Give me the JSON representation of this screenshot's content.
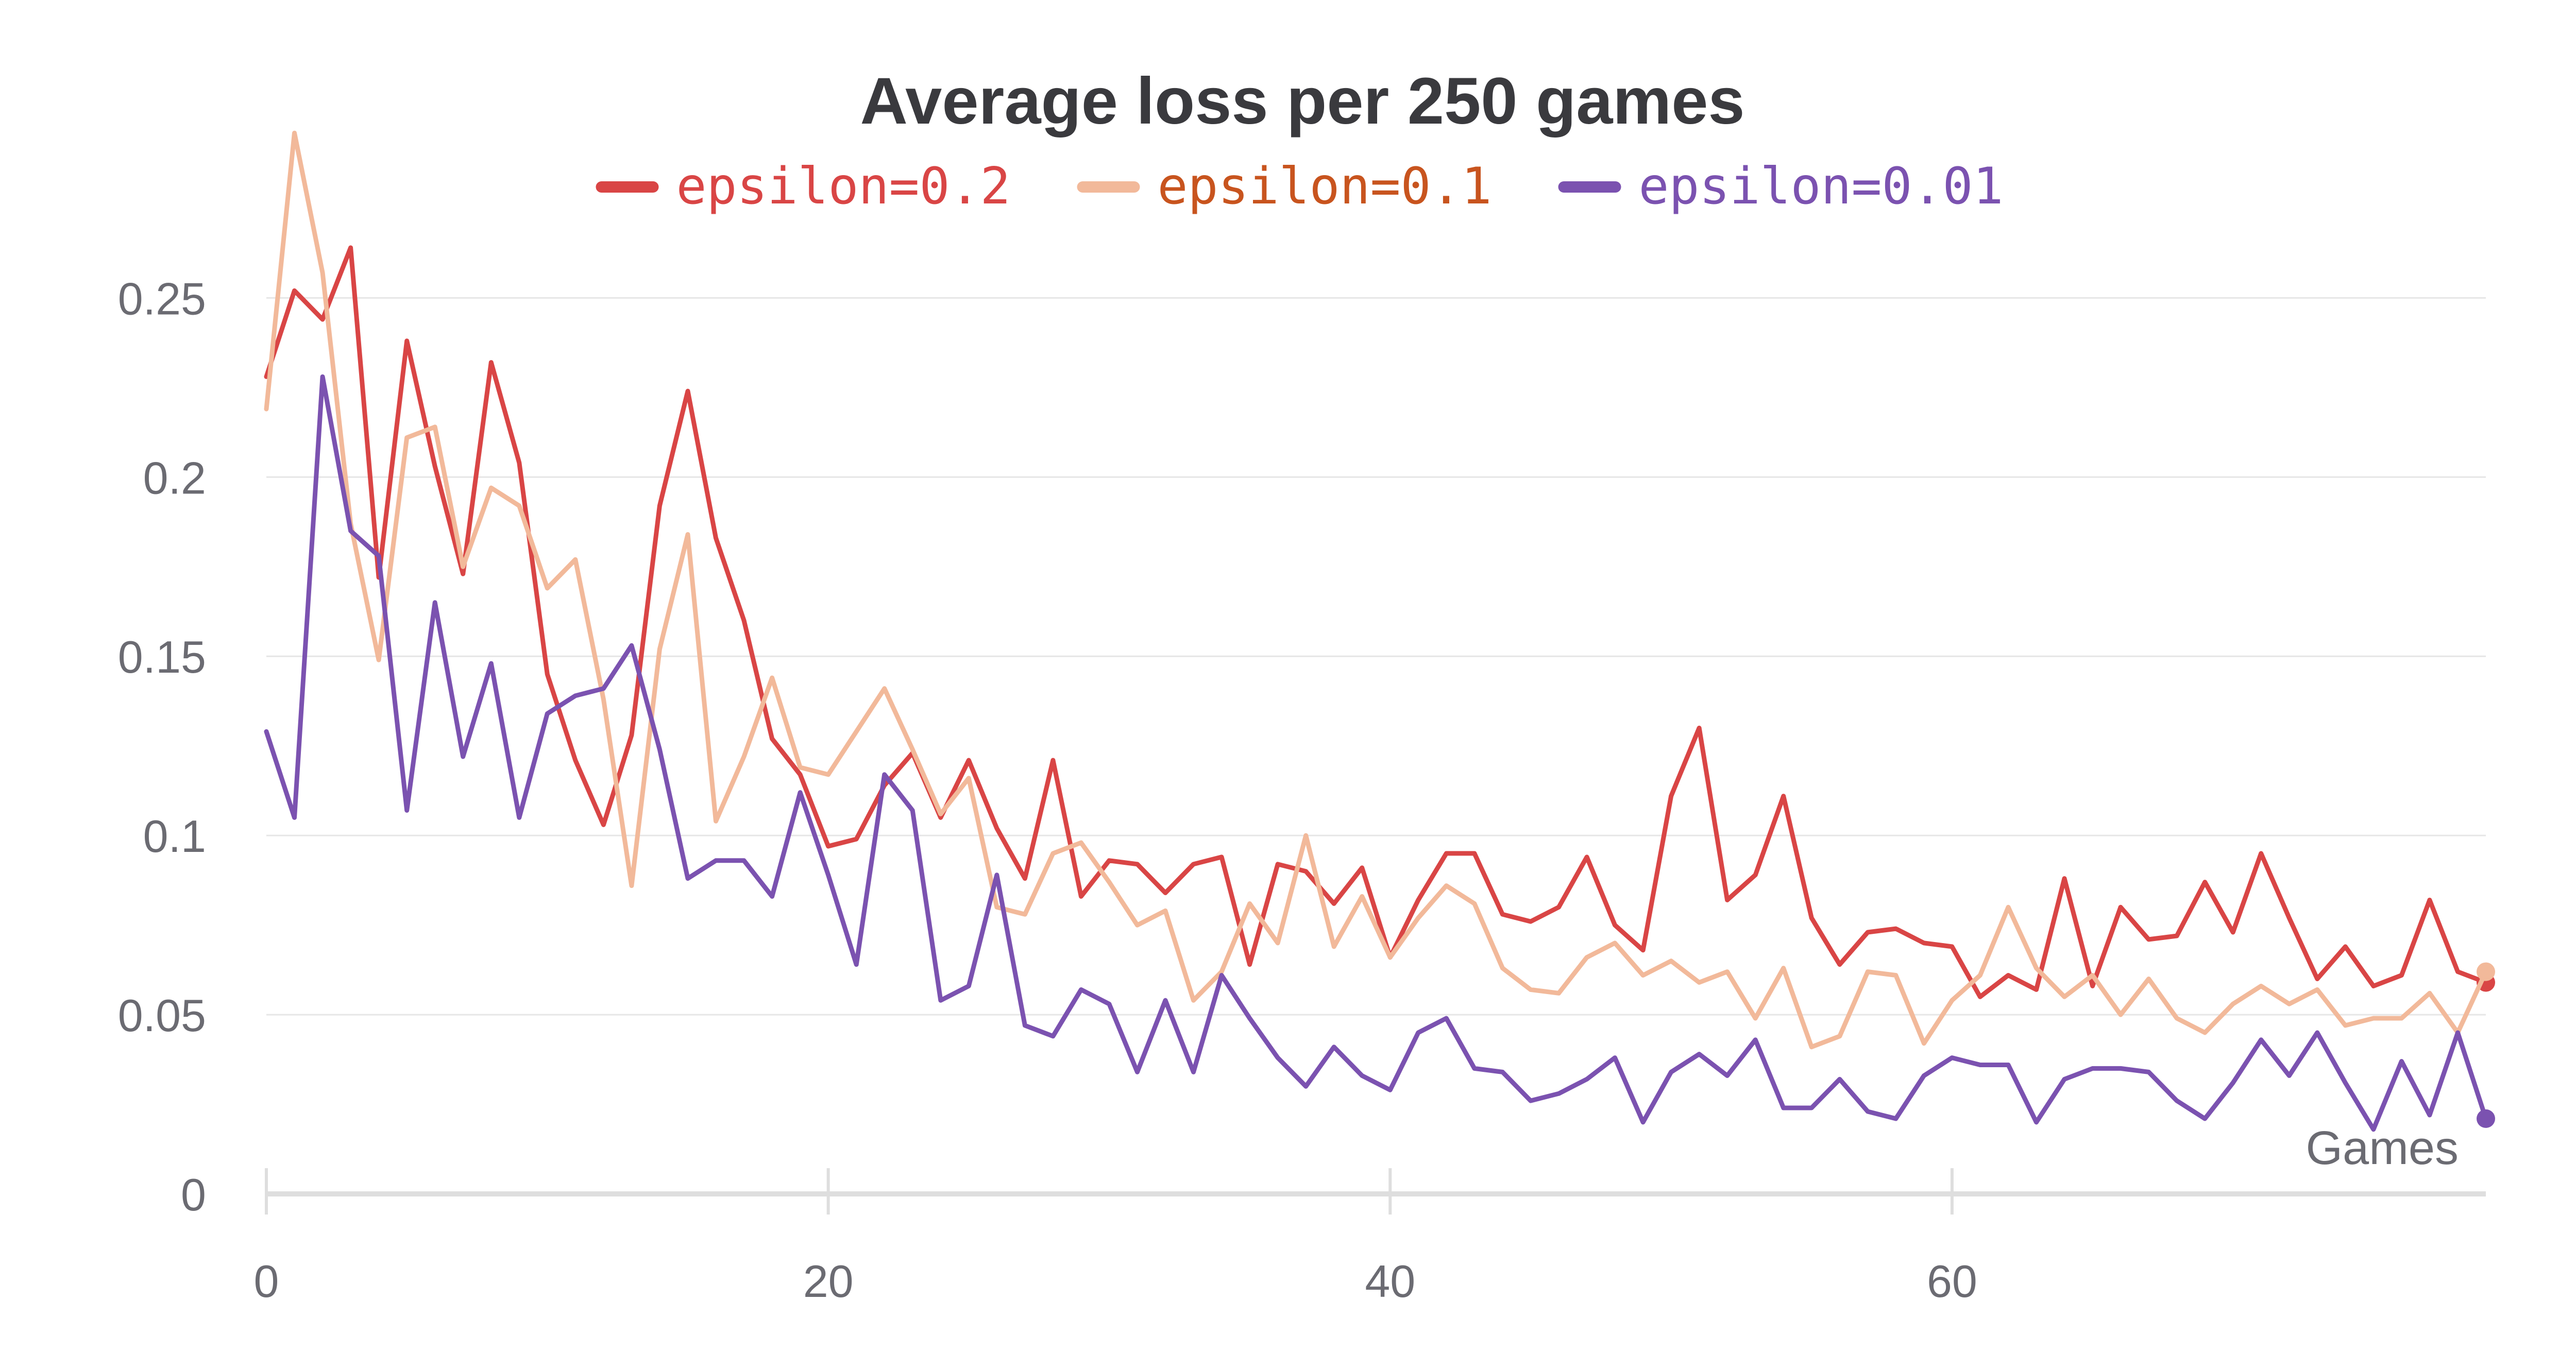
{
  "chart_data": {
    "type": "line",
    "title": "Average loss per 250 games",
    "xlabel": "Games",
    "ylabel": "",
    "xlim": [
      0,
      79
    ],
    "ylim": [
      0,
      0.29
    ],
    "x_ticks": [
      0,
      20,
      40,
      60
    ],
    "x_tick_labels": [
      "0",
      "20",
      "40",
      "60"
    ],
    "y_ticks": [
      0,
      0.05,
      0.1,
      0.15,
      0.2,
      0.25
    ],
    "y_tick_labels": [
      "0",
      "0.05",
      "0.1",
      "0.15",
      "0.2",
      "0.25"
    ],
    "grid": true,
    "legend_position": "top-center",
    "series": [
      {
        "name": "epsilon=0.2",
        "color": "#d94545",
        "text_color": "#d94545",
        "values": [
          0.228,
          0.252,
          0.244,
          0.264,
          0.172,
          0.238,
          0.203,
          0.173,
          0.232,
          0.204,
          0.145,
          0.121,
          0.103,
          0.128,
          0.192,
          0.224,
          0.183,
          0.16,
          0.127,
          0.117,
          0.097,
          0.099,
          0.114,
          0.123,
          0.105,
          0.121,
          0.102,
          0.088,
          0.121,
          0.083,
          0.093,
          0.092,
          0.084,
          0.092,
          0.094,
          0.064,
          0.092,
          0.09,
          0.081,
          0.091,
          0.066,
          0.082,
          0.095,
          0.095,
          0.078,
          0.076,
          0.08,
          0.094,
          0.075,
          0.068,
          0.111,
          0.13,
          0.082,
          0.089,
          0.111,
          0.077,
          0.064,
          0.073,
          0.074,
          0.07,
          0.069,
          0.055,
          0.061,
          0.057,
          0.088,
          0.058,
          0.08,
          0.071,
          0.072,
          0.087,
          0.073,
          0.095,
          0.077,
          0.06,
          0.069,
          0.058,
          0.061,
          0.082,
          0.062,
          0.059
        ]
      },
      {
        "name": "epsilon=0.1",
        "color": "#f2b99a",
        "text_color": "#c8541e",
        "values": [
          0.219,
          0.296,
          0.257,
          0.187,
          0.149,
          0.211,
          0.214,
          0.175,
          0.197,
          0.192,
          0.169,
          0.177,
          0.138,
          0.086,
          0.152,
          0.184,
          0.104,
          0.122,
          0.144,
          0.119,
          0.117,
          0.129,
          0.141,
          0.124,
          0.106,
          0.116,
          0.08,
          0.078,
          0.095,
          0.098,
          0.087,
          0.075,
          0.079,
          0.054,
          0.062,
          0.081,
          0.07,
          0.1,
          0.069,
          0.083,
          0.066,
          0.077,
          0.086,
          0.081,
          0.063,
          0.057,
          0.056,
          0.066,
          0.07,
          0.061,
          0.065,
          0.059,
          0.062,
          0.049,
          0.063,
          0.041,
          0.044,
          0.062,
          0.061,
          0.042,
          0.054,
          0.061,
          0.08,
          0.063,
          0.055,
          0.061,
          0.05,
          0.06,
          0.049,
          0.045,
          0.053,
          0.058,
          0.053,
          0.057,
          0.047,
          0.049,
          0.049,
          0.056,
          0.045,
          0.062
        ]
      },
      {
        "name": "epsilon=0.01",
        "color": "#7b52b0",
        "text_color": "#7b52b0",
        "values": [
          0.129,
          0.105,
          0.228,
          0.185,
          0.178,
          0.107,
          0.165,
          0.122,
          0.148,
          0.105,
          0.134,
          0.139,
          0.141,
          0.153,
          0.124,
          0.088,
          0.093,
          0.093,
          0.083,
          0.112,
          0.089,
          0.064,
          0.117,
          0.107,
          0.054,
          0.058,
          0.089,
          0.047,
          0.044,
          0.057,
          0.053,
          0.034,
          0.054,
          0.034,
          0.061,
          0.049,
          0.038,
          0.03,
          0.041,
          0.033,
          0.029,
          0.045,
          0.049,
          0.035,
          0.034,
          0.026,
          0.028,
          0.032,
          0.038,
          0.02,
          0.034,
          0.039,
          0.033,
          0.043,
          0.024,
          0.024,
          0.032,
          0.023,
          0.021,
          0.033,
          0.038,
          0.036,
          0.036,
          0.02,
          0.032,
          0.035,
          0.035,
          0.034,
          0.026,
          0.021,
          0.031,
          0.043,
          0.033,
          0.045,
          0.031,
          0.018,
          0.037,
          0.022,
          0.045,
          0.021
        ]
      }
    ]
  }
}
